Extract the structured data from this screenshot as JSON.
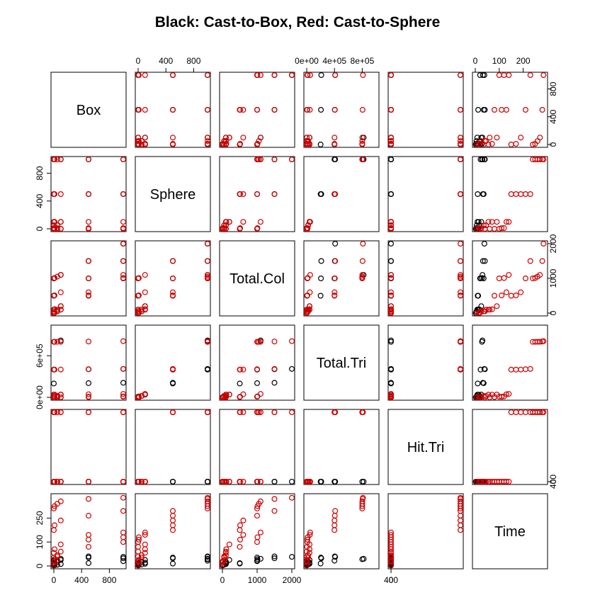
{
  "chart_data": {
    "type": "scatter",
    "title": "Black: Cast-to-Box, Red: Cast-to-Sphere",
    "variables": [
      "Box",
      "Sphere",
      "Total.Col",
      "Total.Tri",
      "Hit.Tri",
      "Time"
    ],
    "ranges": {
      "Box": [
        0,
        1000
      ],
      "Sphere": [
        0,
        1000
      ],
      "Total.Col": [
        0,
        2000
      ],
      "Total.Tri": [
        0,
        1000000
      ],
      "Hit.Tri": [
        0,
        1000000
      ],
      "Time": [
        0,
        290
      ]
    },
    "tick_labels": {
      "Box": [
        0,
        400,
        800
      ],
      "Sphere": [
        0,
        400,
        800
      ],
      "Total.Col": [
        0,
        1000,
        2000
      ],
      "Total.Tri": [
        0,
        400000,
        800000
      ],
      "Total.Tri_alt": [
        0,
        600000
      ],
      "Hit.Tri": [
        0,
        400
      ],
      "Time": [
        0,
        100,
        200
      ]
    },
    "tick_texts": {
      "Box": [
        "0",
        "400",
        "800"
      ],
      "Sphere": [
        "0",
        "400",
        "800"
      ],
      "Total.Col": [
        "0",
        "1000",
        "2000"
      ],
      "Total.Tri": [
        "0e+00",
        "4e+05",
        "8e+05"
      ],
      "Total.Tri_alt": [
        "0e+00",
        "6e+05"
      ],
      "Hit.Tri": [
        "0",
        "400"
      ],
      "Time": [
        "0",
        "100",
        "200"
      ],
      "Time_left": [
        "0",
        "100",
        "250"
      ]
    },
    "series": [
      {
        "name": "Cast-to-Box",
        "color": "#000000",
        "points": [
          {
            "Box": 0,
            "Sphere": 0,
            "Total.Col": 0,
            "Total.Tri": 0,
            "Hit.Tri": 0,
            "Time": 2
          },
          {
            "Box": 10,
            "Sphere": 0,
            "Total.Col": 10,
            "Total.Tri": 100,
            "Hit.Tri": 5,
            "Time": 3
          },
          {
            "Box": 50,
            "Sphere": 0,
            "Total.Col": 50,
            "Total.Tri": 500,
            "Hit.Tri": 20,
            "Time": 5
          },
          {
            "Box": 100,
            "Sphere": 0,
            "Total.Col": 100,
            "Total.Tri": 1000,
            "Hit.Tri": 40,
            "Time": 8
          },
          {
            "Box": 500,
            "Sphere": 0,
            "Total.Col": 500,
            "Total.Tri": 5000,
            "Hit.Tri": 60,
            "Time": 12
          },
          {
            "Box": 1000,
            "Sphere": 0,
            "Total.Col": 1000,
            "Total.Tri": 10000,
            "Hit.Tri": 80,
            "Time": 20
          },
          {
            "Box": 0,
            "Sphere": 10,
            "Total.Col": 10,
            "Total.Tri": 100,
            "Hit.Tri": 10,
            "Time": 4
          },
          {
            "Box": 0,
            "Sphere": 50,
            "Total.Col": 50,
            "Total.Tri": 20000,
            "Hit.Tri": 15,
            "Time": 6
          },
          {
            "Box": 0,
            "Sphere": 100,
            "Total.Col": 100,
            "Total.Tri": 40000,
            "Hit.Tri": 30,
            "Time": 9
          },
          {
            "Box": 10,
            "Sphere": 100,
            "Total.Col": 110,
            "Total.Tri": 40100,
            "Hit.Tri": 35,
            "Time": 14
          },
          {
            "Box": 50,
            "Sphere": 50,
            "Total.Col": 100,
            "Total.Tri": 20500,
            "Hit.Tri": 50,
            "Time": 18
          },
          {
            "Box": 100,
            "Sphere": 100,
            "Total.Col": 200,
            "Total.Tri": 41000,
            "Hit.Tri": 70,
            "Time": 25
          },
          {
            "Box": 500,
            "Sphere": 500,
            "Total.Col": 1000,
            "Total.Tri": 205000,
            "Hit.Tri": 100,
            "Time": 35
          },
          {
            "Box": 500,
            "Sphere": 1000,
            "Total.Col": 1500,
            "Total.Tri": 405000,
            "Hit.Tri": 120,
            "Time": 40
          },
          {
            "Box": 1000,
            "Sphere": 500,
            "Total.Col": 1500,
            "Total.Tri": 210000,
            "Hit.Tri": 130,
            "Time": 32
          },
          {
            "Box": 1000,
            "Sphere": 1000,
            "Total.Col": 2000,
            "Total.Tri": 410000,
            "Hit.Tri": 150,
            "Time": 38
          },
          {
            "Box": 0,
            "Sphere": 500,
            "Total.Col": 500,
            "Total.Tri": 200000,
            "Hit.Tri": 25,
            "Time": 10
          },
          {
            "Box": 0,
            "Sphere": 1000,
            "Total.Col": 1000,
            "Total.Tri": 400000,
            "Hit.Tri": 45,
            "Time": 22
          },
          {
            "Box": 10,
            "Sphere": 1000,
            "Total.Col": 1010,
            "Total.Tri": 800000,
            "Hit.Tri": 90,
            "Time": 28
          },
          {
            "Box": 100,
            "Sphere": 1000,
            "Total.Col": 1100,
            "Total.Tri": 820000,
            "Hit.Tri": 110,
            "Time": 30
          }
        ]
      },
      {
        "name": "Cast-to-Sphere",
        "color": "#cc0000",
        "points": [
          {
            "Box": 0,
            "Sphere": 0,
            "Total.Col": 0,
            "Total.Tri": 0,
            "Hit.Tri": 0,
            "Time": 5
          },
          {
            "Box": 10,
            "Sphere": 0,
            "Total.Col": 10,
            "Total.Tri": 100,
            "Hit.Tri": 0,
            "Time": 20
          },
          {
            "Box": 50,
            "Sphere": 0,
            "Total.Col": 50,
            "Total.Tri": 500,
            "Hit.Tri": 0,
            "Time": 40
          },
          {
            "Box": 100,
            "Sphere": 0,
            "Total.Col": 100,
            "Total.Tri": 1000,
            "Hit.Tri": 0,
            "Time": 60
          },
          {
            "Box": 500,
            "Sphere": 0,
            "Total.Col": 500,
            "Total.Tri": 5000,
            "Hit.Tri": 0,
            "Time": 80
          },
          {
            "Box": 1000,
            "Sphere": 0,
            "Total.Col": 1000,
            "Total.Tri": 10000,
            "Hit.Tri": 0,
            "Time": 100
          },
          {
            "Box": 0,
            "Sphere": 10,
            "Total.Col": 10,
            "Total.Tri": 4000,
            "Hit.Tri": 0,
            "Time": 15
          },
          {
            "Box": 0,
            "Sphere": 50,
            "Total.Col": 50,
            "Total.Tri": 20000,
            "Hit.Tri": 0,
            "Time": 35
          },
          {
            "Box": 0,
            "Sphere": 100,
            "Total.Col": 100,
            "Total.Tri": 40000,
            "Hit.Tri": 0,
            "Time": 55
          },
          {
            "Box": 10,
            "Sphere": 100,
            "Total.Col": 110,
            "Total.Tri": 40100,
            "Hit.Tri": 0,
            "Time": 70
          },
          {
            "Box": 50,
            "Sphere": 50,
            "Total.Col": 100,
            "Total.Tri": 20500,
            "Hit.Tri": 0,
            "Time": 45
          },
          {
            "Box": 100,
            "Sphere": 100,
            "Total.Col": 200,
            "Total.Tri": 41000,
            "Hit.Tri": 0,
            "Time": 90
          },
          {
            "Box": 0,
            "Sphere": 500,
            "Total.Col": 500,
            "Total.Tri": 400000,
            "Hit.Tri": 1000000,
            "Time": 150
          },
          {
            "Box": 10,
            "Sphere": 500,
            "Total.Col": 510,
            "Total.Tri": 400100,
            "Hit.Tri": 1000000,
            "Time": 170
          },
          {
            "Box": 100,
            "Sphere": 500,
            "Total.Col": 600,
            "Total.Tri": 401000,
            "Hit.Tri": 1000000,
            "Time": 190
          },
          {
            "Box": 500,
            "Sphere": 500,
            "Total.Col": 1000,
            "Total.Tri": 405000,
            "Hit.Tri": 1000000,
            "Time": 210
          },
          {
            "Box": 1000,
            "Sphere": 500,
            "Total.Col": 1500,
            "Total.Tri": 410000,
            "Hit.Tri": 1000000,
            "Time": 230
          },
          {
            "Box": 0,
            "Sphere": 1000,
            "Total.Col": 1000,
            "Total.Tri": 800000,
            "Hit.Tri": 1000000,
            "Time": 240
          },
          {
            "Box": 10,
            "Sphere": 1000,
            "Total.Col": 1010,
            "Total.Tri": 800100,
            "Hit.Tri": 1000000,
            "Time": 250
          },
          {
            "Box": 50,
            "Sphere": 1000,
            "Total.Col": 1050,
            "Total.Tri": 800500,
            "Hit.Tri": 1000000,
            "Time": 260
          },
          {
            "Box": 100,
            "Sphere": 1000,
            "Total.Col": 1100,
            "Total.Tri": 801000,
            "Hit.Tri": 1000000,
            "Time": 270
          },
          {
            "Box": 500,
            "Sphere": 1000,
            "Total.Col": 1500,
            "Total.Tri": 805000,
            "Hit.Tri": 1000000,
            "Time": 280
          },
          {
            "Box": 1000,
            "Sphere": 1000,
            "Total.Col": 2000,
            "Total.Tri": 810000,
            "Hit.Tri": 1000000,
            "Time": 285
          },
          {
            "Box": 500,
            "Sphere": 10,
            "Total.Col": 510,
            "Total.Tri": 9000,
            "Hit.Tri": 0,
            "Time": 110
          },
          {
            "Box": 1000,
            "Sphere": 10,
            "Total.Col": 1010,
            "Total.Tri": 14000,
            "Hit.Tri": 0,
            "Time": 120
          },
          {
            "Box": 500,
            "Sphere": 100,
            "Total.Col": 600,
            "Total.Tri": 45000,
            "Hit.Tri": 0,
            "Time": 130
          },
          {
            "Box": 1000,
            "Sphere": 100,
            "Total.Col": 1100,
            "Total.Tri": 50000,
            "Hit.Tri": 0,
            "Time": 140
          },
          {
            "Box": 50,
            "Sphere": 10,
            "Total.Col": 60,
            "Total.Tri": 4500,
            "Hit.Tri": 0,
            "Time": 25
          }
        ]
      }
    ]
  }
}
